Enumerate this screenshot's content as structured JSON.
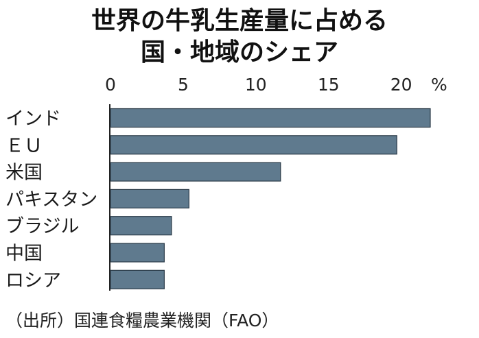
{
  "chart_data": {
    "type": "bar",
    "orientation": "horizontal",
    "title_lines": [
      "世界の牛乳生産量に占める",
      "国・地域のシェア"
    ],
    "unit": "%",
    "categories": [
      "インド",
      "ＥＵ",
      "米国",
      "パキスタン",
      "ブラジル",
      "中国",
      "ロシア"
    ],
    "values": [
      22,
      19.7,
      11.7,
      5.4,
      4.2,
      3.7,
      3.7
    ],
    "xlim": [
      0,
      22
    ],
    "ticks": [
      0,
      5,
      10,
      15,
      20
    ],
    "grid": false,
    "bar_color": "#5f7a8e"
  },
  "source": "（出所）国連食糧農業機関（FAO）"
}
